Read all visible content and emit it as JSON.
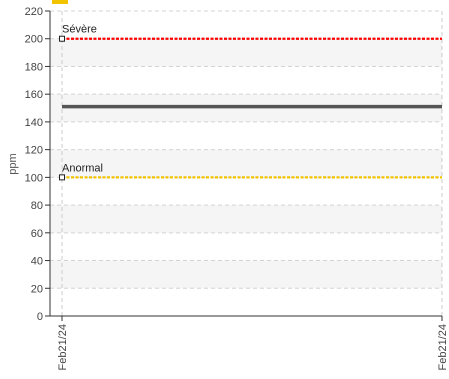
{
  "chart_data": {
    "type": "line",
    "ylabel": "ppm",
    "ylim": [
      0,
      220
    ],
    "y_ticks": [
      0,
      20,
      40,
      60,
      80,
      100,
      120,
      140,
      160,
      180,
      200,
      220
    ],
    "x_tick_labels": [
      "Feb21/24",
      "Feb21/24"
    ],
    "grid": true,
    "series": [
      {
        "values": [
          151,
          151
        ],
        "color": "#555555"
      }
    ],
    "thresholds": [
      {
        "label": "Sévère",
        "value": 200,
        "color": "#ff0000"
      },
      {
        "label": "Anormal",
        "value": 100,
        "color": "#f2c400"
      }
    ],
    "legend_swatch_color": "#f2c400"
  }
}
